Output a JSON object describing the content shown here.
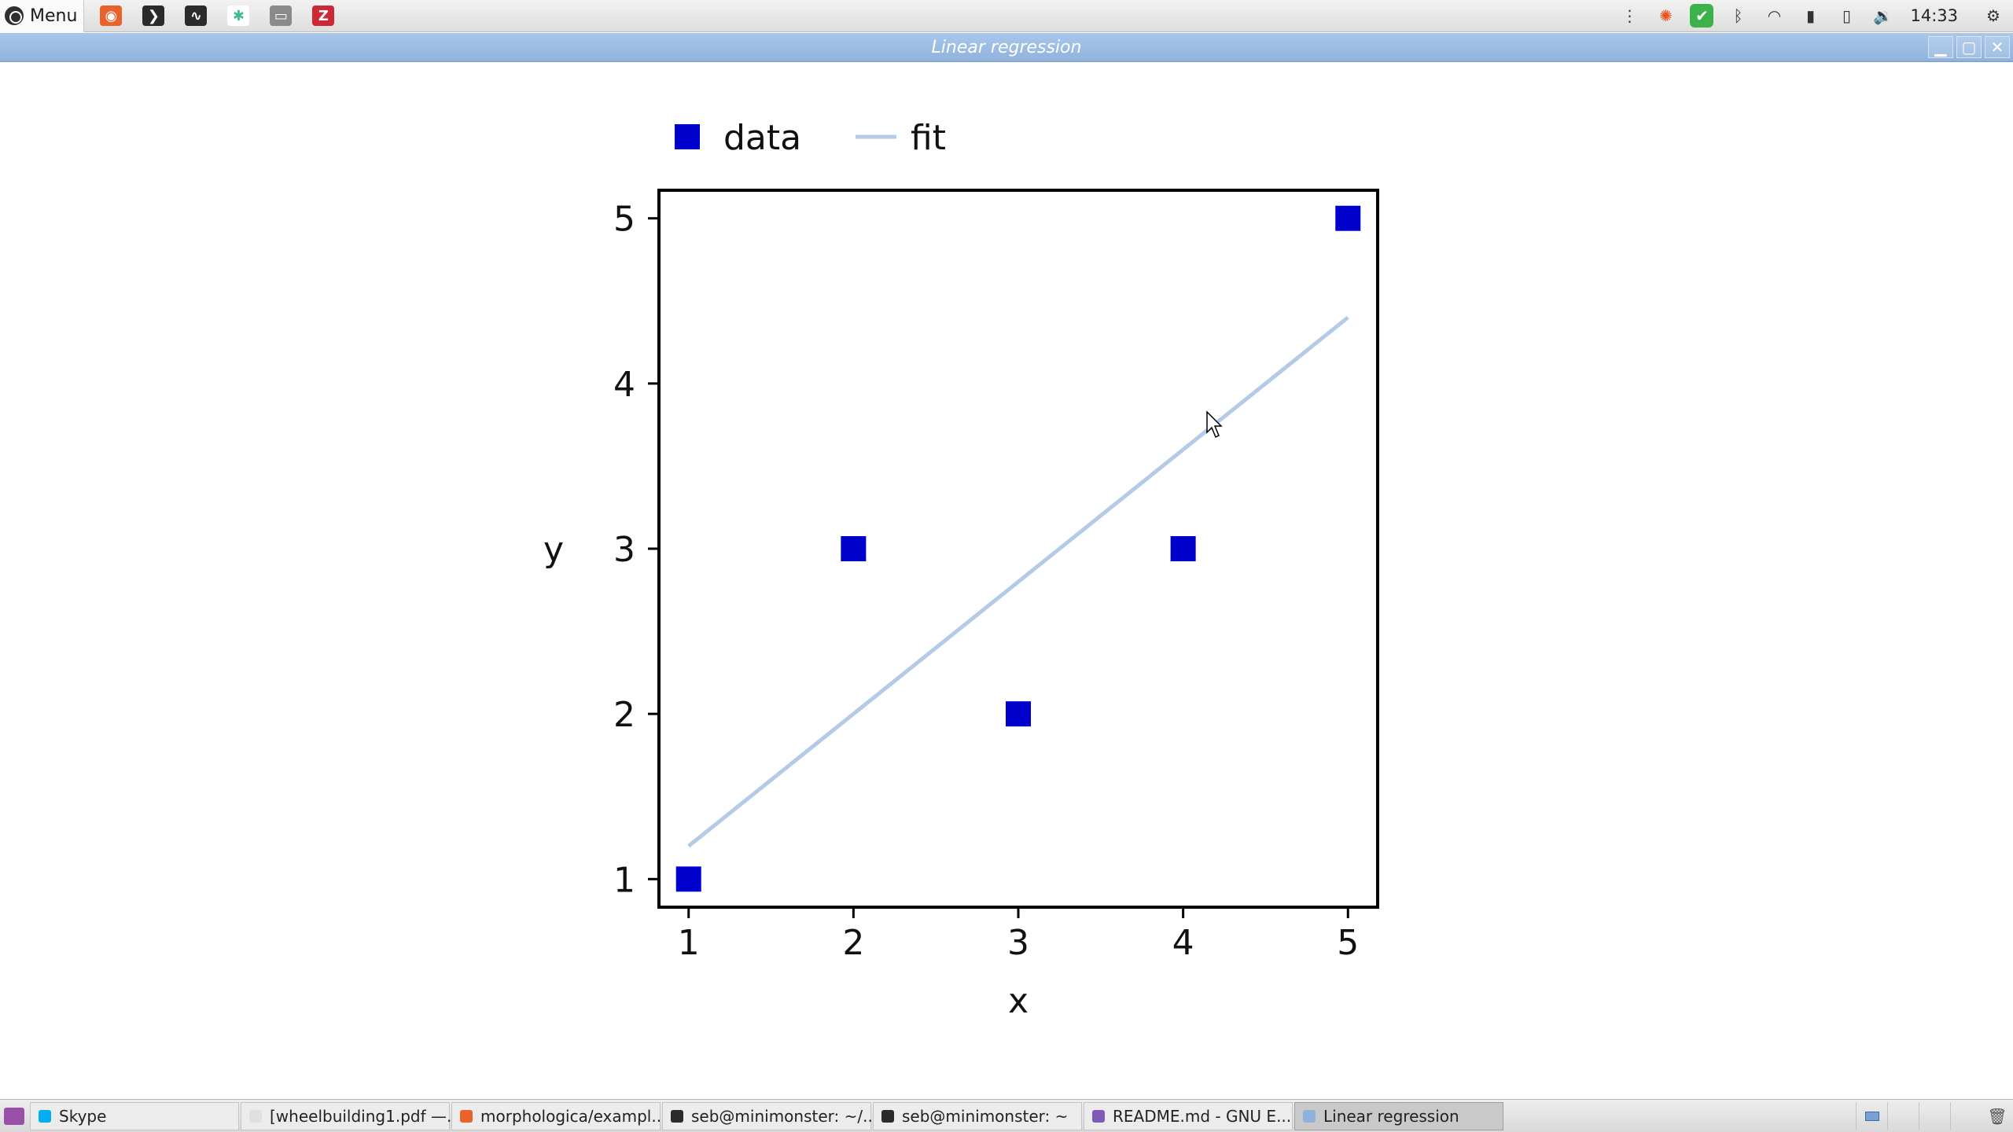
{
  "top_panel": {
    "menu_label": "Menu",
    "launchers": [
      {
        "name": "firefox-icon",
        "color": "#e8622a",
        "glyph": "◉"
      },
      {
        "name": "terminal-icon",
        "color": "#2b2b2b",
        "glyph": "❯"
      },
      {
        "name": "system-monitor-icon",
        "color": "#2b2b2b",
        "glyph": "∿"
      },
      {
        "name": "slack-icon",
        "color": "#ffffff",
        "glyph": "✱"
      },
      {
        "name": "file-manager-icon",
        "color": "#8a8a8a",
        "glyph": "▭"
      },
      {
        "name": "zotero-icon",
        "color": "#cc2936",
        "glyph": "Z"
      }
    ],
    "tray": [
      {
        "name": "notifications-icon",
        "glyph": "⋮"
      },
      {
        "name": "ubuntu-updates-icon",
        "glyph": "✺"
      },
      {
        "name": "update-ok-icon",
        "glyph": "✔"
      },
      {
        "name": "bluetooth-icon",
        "glyph": "ᛒ"
      },
      {
        "name": "wifi-icon",
        "glyph": "◠"
      },
      {
        "name": "removable-drive-icon",
        "glyph": "▮"
      },
      {
        "name": "battery-icon",
        "glyph": "▯"
      },
      {
        "name": "volume-icon",
        "glyph": "🔉"
      }
    ],
    "clock": "14:33",
    "settings_glyph": "⚙"
  },
  "window": {
    "title": "Linear regression",
    "controls": {
      "minimize": "▁",
      "maximize": "▢",
      "close": "✕"
    }
  },
  "chart_data": {
    "type": "scatter",
    "title": "",
    "xlabel": "x",
    "ylabel": "y",
    "xlim": [
      0.82,
      5.18
    ],
    "ylim": [
      0.83,
      5.17
    ],
    "xticks": [
      1,
      2,
      3,
      4,
      5
    ],
    "yticks": [
      1,
      2,
      3,
      4,
      5
    ],
    "grid": false,
    "legend_position": "top",
    "series": [
      {
        "name": "data",
        "kind": "markers",
        "marker": "square",
        "color": "#0000cc",
        "x": [
          1,
          2,
          3,
          4,
          5
        ],
        "y": [
          1,
          3,
          2,
          3,
          5
        ]
      },
      {
        "name": "fit",
        "kind": "line",
        "color": "#b3cbe6",
        "x": [
          1,
          5
        ],
        "y": [
          1.2,
          4.4
        ]
      }
    ]
  },
  "taskbar": {
    "tasks": [
      {
        "label": "Skype",
        "color": "#00aff0",
        "active": false
      },
      {
        "label": "[wheelbuilding1.pdf —...",
        "color": "#e0e0e0",
        "active": false
      },
      {
        "label": "morphologica/exampl...",
        "color": "#e8622a",
        "active": false
      },
      {
        "label": "seb@minimonster: ~/...",
        "color": "#2b2b2b",
        "active": false
      },
      {
        "label": "seb@minimonster: ~",
        "color": "#2b2b2b",
        "active": false
      },
      {
        "label": "README.md - GNU E...",
        "color": "#7f5ab6",
        "active": false
      },
      {
        "label": "Linear regression",
        "color": "#8fb2dc",
        "active": true
      }
    ],
    "trash_glyph": "🗑"
  }
}
